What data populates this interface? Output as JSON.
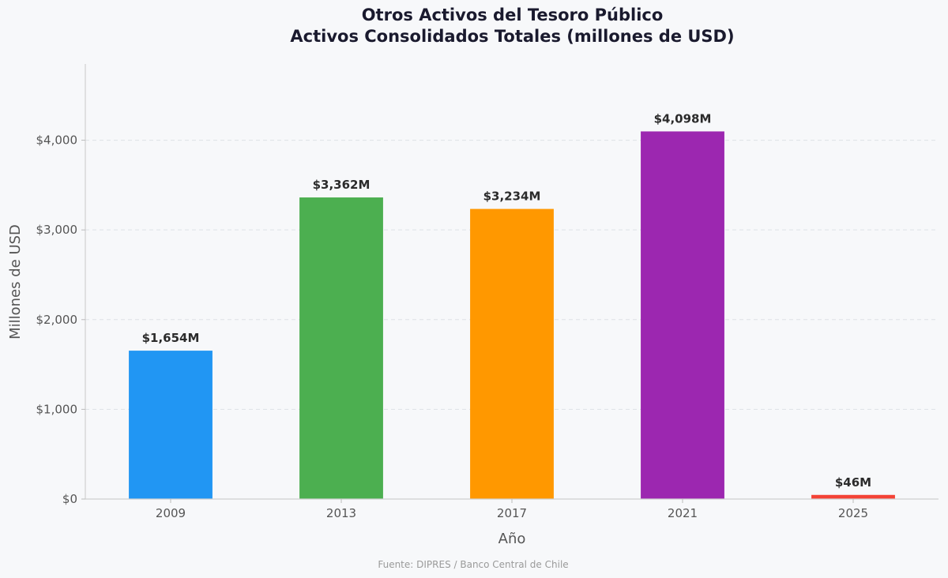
{
  "chart_data": {
    "type": "bar",
    "title": "Otros Activos del Tesoro Público",
    "subtitle": "Activos Consolidados Totales (millones de USD)",
    "xlabel": "Año",
    "ylabel": "Millones de USD",
    "categories": [
      "2009",
      "2013",
      "2017",
      "2021",
      "2025"
    ],
    "values": [
      1654,
      3362,
      3234,
      4098,
      46
    ],
    "value_labels": [
      "$1,654M",
      "$3,362M",
      "$3,234M",
      "$4,098M",
      "$46M"
    ],
    "bar_colors": [
      "#2196f3",
      "#4caf50",
      "#ff9800",
      "#9c27b0",
      "#f44336"
    ],
    "ylim": [
      0,
      4850
    ],
    "yticks": [
      0,
      1000,
      2000,
      3000,
      4000
    ],
    "ytick_labels": [
      "$0",
      "$1,000",
      "$2,000",
      "$3,000",
      "$4,000"
    ],
    "grid": "horizontal-dashed",
    "legend": "none",
    "source": "Fuente: DIPRES / Banco Central de Chile"
  }
}
